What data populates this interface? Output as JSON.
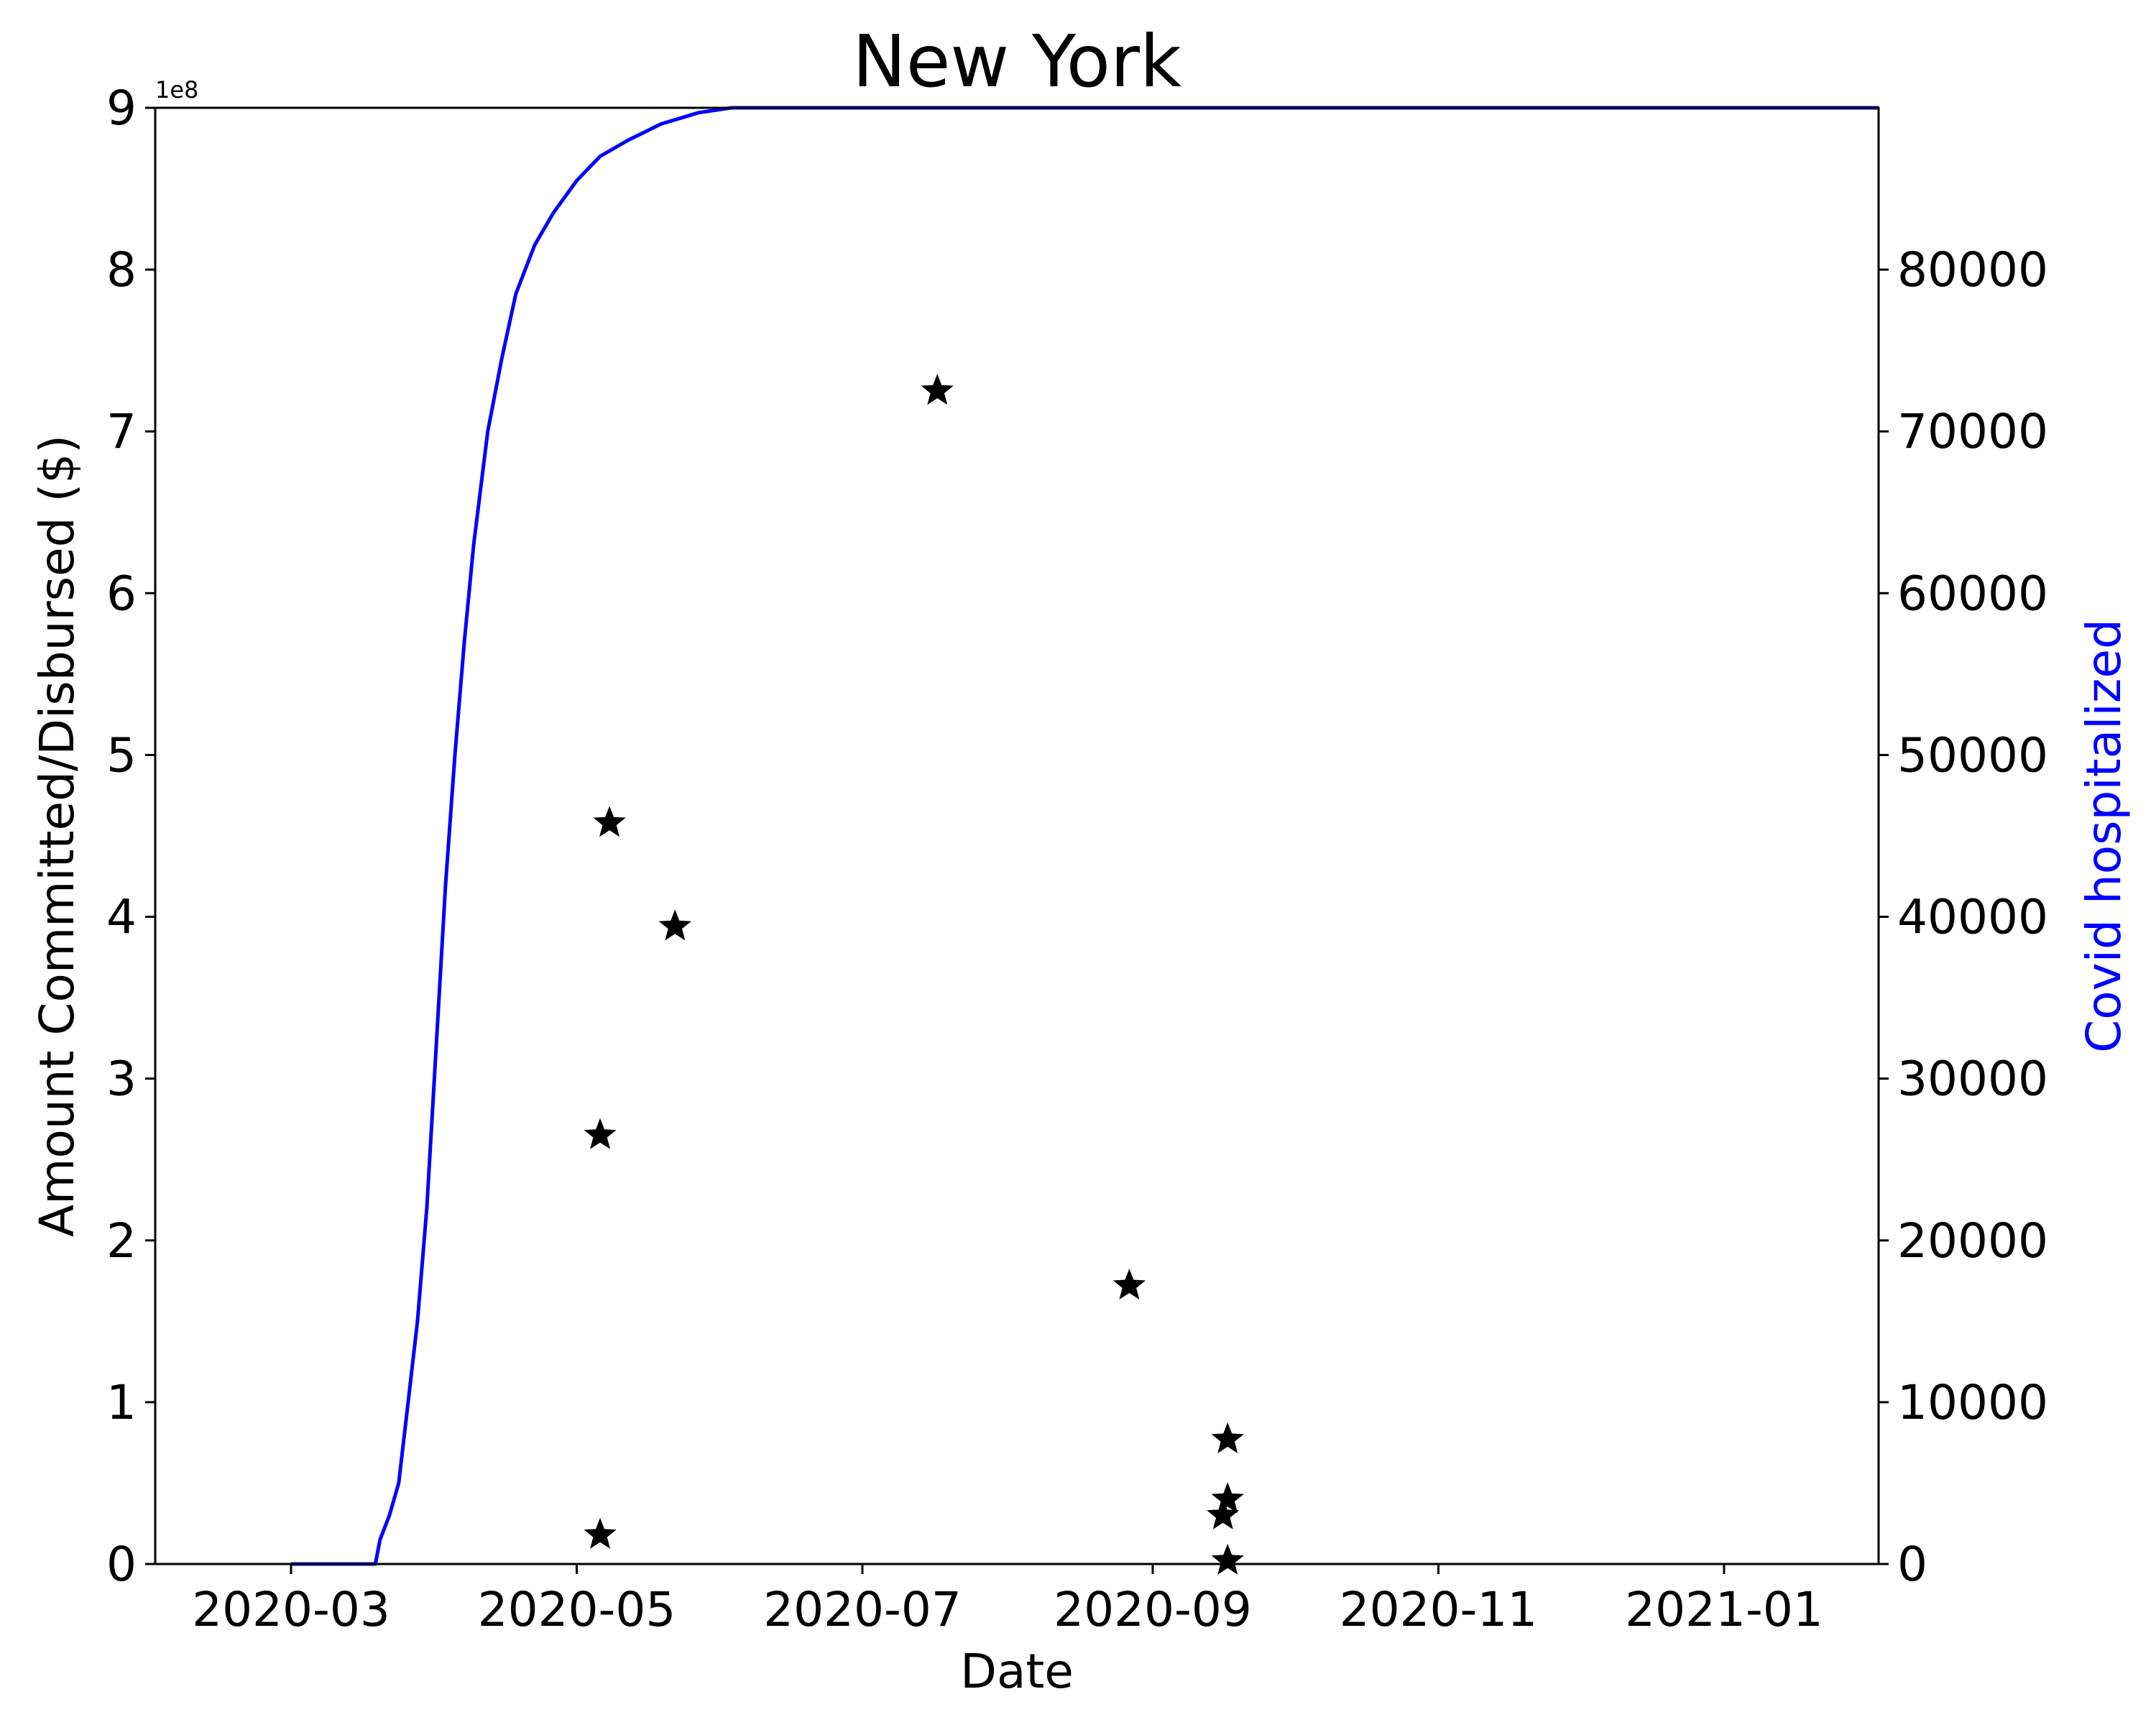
{
  "chart_data": {
    "type": "scatter",
    "title": "New York",
    "xlabel": "Date",
    "ylabel": "Amount Committed/Disbursed ($)",
    "y2label": "Covid hospitalized",
    "y_offset_label": "1e8",
    "xlim": [
      "2020-02-01",
      "2021-02-03"
    ],
    "ylim": [
      0,
      9
    ],
    "y2lim": [
      0,
      90000
    ],
    "x_ticks": [
      "2020-03",
      "2020-05",
      "2020-07",
      "2020-09",
      "2020-11",
      "2021-01"
    ],
    "y_ticks": [
      "0",
      "1",
      "2",
      "3",
      "4",
      "5",
      "6",
      "7",
      "8",
      "9"
    ],
    "y2_ticks": [
      "0",
      "10000",
      "20000",
      "30000",
      "40000",
      "50000",
      "60000",
      "70000",
      "80000"
    ],
    "grid": false,
    "colors": {
      "line": "#0000ff",
      "markers": "#000000",
      "y2label": "#0000ff"
    },
    "series": [
      {
        "kind": "scatter",
        "marker": "star",
        "axis": "left",
        "points": [
          {
            "x": "2020-05-06",
            "y": 2.65
          },
          {
            "x": "2020-05-06",
            "y": 0.18
          },
          {
            "x": "2020-05-08",
            "y": 4.58
          },
          {
            "x": "2020-05-22",
            "y": 3.94
          },
          {
            "x": "2020-07-17",
            "y": 7.25
          },
          {
            "x": "2020-08-27",
            "y": 1.72
          },
          {
            "x": "2020-09-16",
            "y": 0.3
          },
          {
            "x": "2020-09-17",
            "y": 0.77
          },
          {
            "x": "2020-09-17",
            "y": 0.4
          },
          {
            "x": "2020-09-17",
            "y": 0.02
          }
        ]
      },
      {
        "kind": "line",
        "axis": "right",
        "points": [
          {
            "x": "2020-03-01",
            "y": 0
          },
          {
            "x": "2020-03-19",
            "y": 0
          },
          {
            "x": "2020-03-20",
            "y": 1500
          },
          {
            "x": "2020-03-22",
            "y": 3000
          },
          {
            "x": "2020-03-24",
            "y": 5000
          },
          {
            "x": "2020-03-26",
            "y": 10000
          },
          {
            "x": "2020-03-28",
            "y": 15000
          },
          {
            "x": "2020-03-30",
            "y": 22000
          },
          {
            "x": "2020-04-01",
            "y": 32000
          },
          {
            "x": "2020-04-03",
            "y": 42000
          },
          {
            "x": "2020-04-05",
            "y": 50000
          },
          {
            "x": "2020-04-07",
            "y": 57000
          },
          {
            "x": "2020-04-09",
            "y": 63000
          },
          {
            "x": "2020-04-12",
            "y": 70000
          },
          {
            "x": "2020-04-15",
            "y": 74500
          },
          {
            "x": "2020-04-18",
            "y": 78500
          },
          {
            "x": "2020-04-22",
            "y": 81500
          },
          {
            "x": "2020-04-26",
            "y": 83500
          },
          {
            "x": "2020-05-01",
            "y": 85500
          },
          {
            "x": "2020-05-06",
            "y": 87000
          },
          {
            "x": "2020-05-12",
            "y": 88000
          },
          {
            "x": "2020-05-19",
            "y": 89000
          },
          {
            "x": "2020-05-27",
            "y": 89700
          },
          {
            "x": "2020-06-03",
            "y": 90000
          },
          {
            "x": "2021-02-03",
            "y": 90000
          }
        ]
      }
    ]
  }
}
